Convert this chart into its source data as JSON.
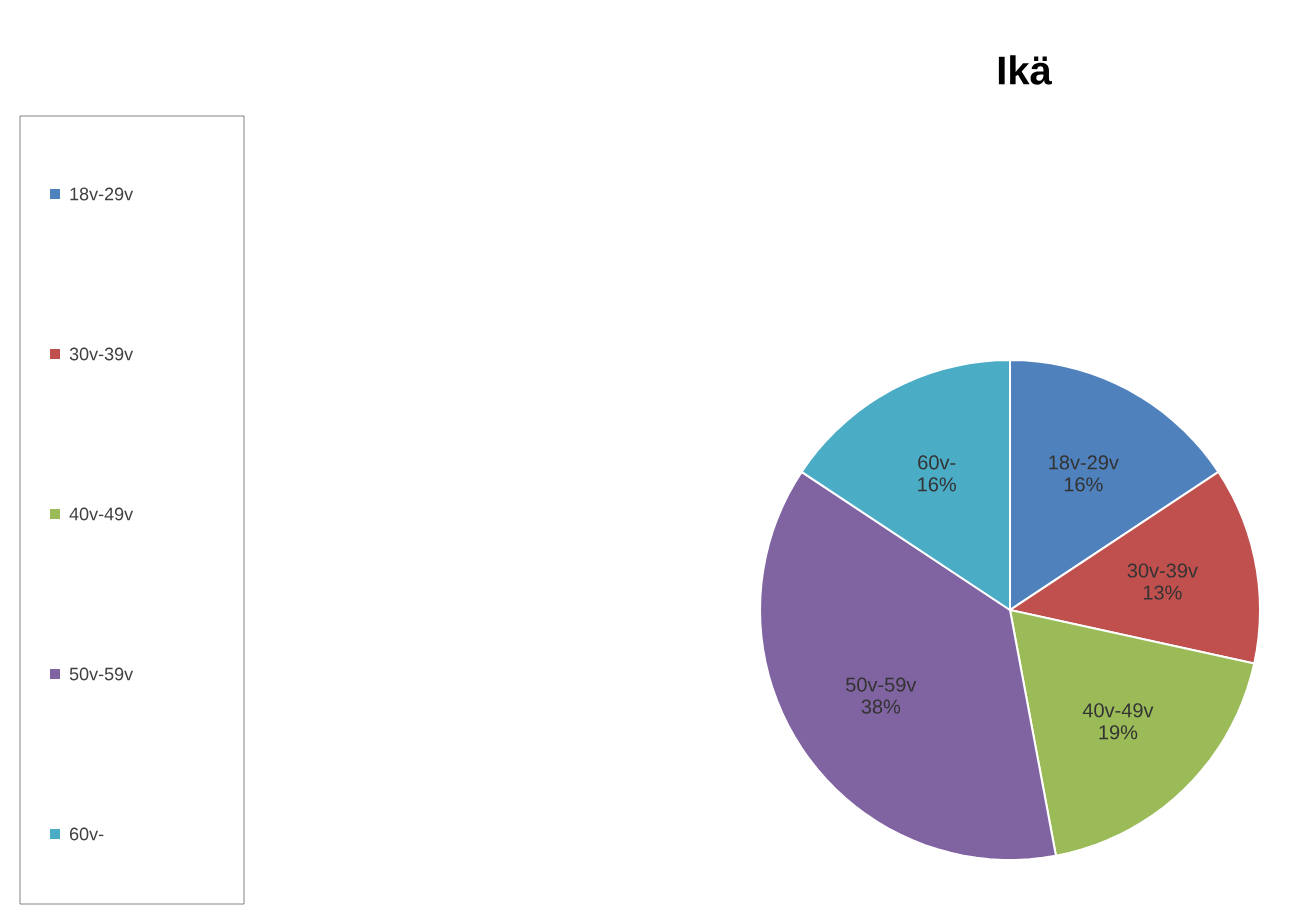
{
  "chart_data": {
    "type": "pie",
    "title": "Ikä",
    "categories": [
      "18v-29v",
      "30v-39v",
      "40v-49v",
      "50v-59v",
      "60v-"
    ],
    "values": [
      16,
      13,
      19,
      38,
      16
    ],
    "value_labels": [
      "16%",
      "13%",
      "19%",
      "38%",
      "16%"
    ],
    "colors": [
      "#4f81bd",
      "#c0504d",
      "#9bbb59",
      "#8064a2",
      "#4bacc6"
    ],
    "legend": "left"
  }
}
